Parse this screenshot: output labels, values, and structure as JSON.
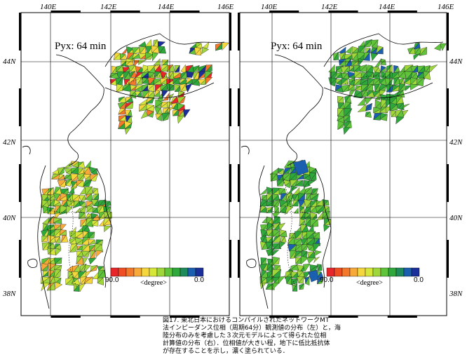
{
  "panels": [
    {
      "id": "left",
      "title": "Pyx:  64 min",
      "lon_labels": [
        "140E",
        "142E",
        "144E",
        "146E"
      ],
      "lat_labels": [
        "44N",
        "42N",
        "40N",
        "38N"
      ],
      "scale_min_label": "90.0",
      "scale_max_label": "0.0",
      "scale_unit": "<degree>"
    },
    {
      "id": "right",
      "title": "Pyx:  64 min",
      "lon_labels": [
        "140E",
        "142E",
        "144E",
        "146E"
      ],
      "lat_labels": [
        "44N",
        "42N",
        "40N",
        "38N"
      ],
      "scale_min_label": "90.0",
      "scale_max_label": "0.0",
      "scale_unit": "<degree>"
    }
  ],
  "colorbar": [
    "#e8262a",
    "#ef4d23",
    "#f4782a",
    "#f7a93a",
    "#f5d63c",
    "#d6e63a",
    "#9fd63a",
    "#5fc43a",
    "#2ea83a",
    "#1f8a5a",
    "#1b5fb0",
    "#1a2f9a"
  ],
  "caption_lines": [
    "図17. 東北日本におけるコンパイルされたネットワークMT",
    "法インピーダンス位相（周期64分）観測値の分布（左）と，海",
    "陸分布のみを考慮した３次元モデルによって得られた位相",
    "計算値の分布（右）．位相値が大きい程，地下に低比抵抗体",
    "が存在することを示し，濃く塗られている．"
  ]
}
